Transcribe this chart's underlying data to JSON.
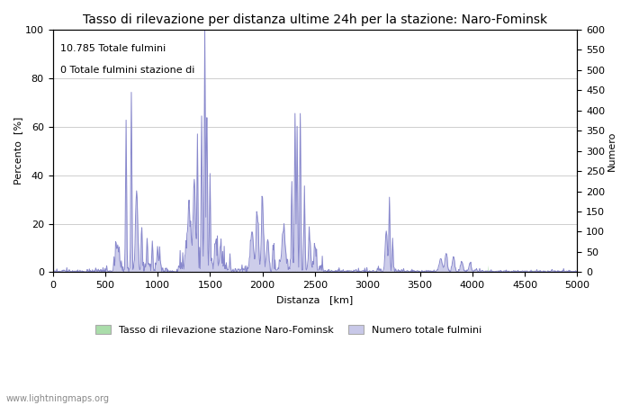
{
  "title": "Tasso di rilevazione per distanza ultime 24h per la stazione: Naro-Fominsk",
  "xlabel": "Distanza   [km]",
  "ylabel_left": "Percento  [%]",
  "ylabel_right": "Numero",
  "annotation_line1": "10.785 Totale fulmini",
  "annotation_line2": "0 Totale fulmini stazione di",
  "legend_label1": "Tasso di rilevazione stazione Naro-Fominsk",
  "legend_label2": "Numero totale fulmini",
  "watermark": "www.lightningmaps.org",
  "xlim": [
    0,
    5000
  ],
  "ylim_left": [
    0,
    100
  ],
  "ylim_right": [
    0,
    600
  ],
  "xticks": [
    0,
    500,
    1000,
    1500,
    2000,
    2500,
    3000,
    3500,
    4000,
    4500,
    5000
  ],
  "yticks_left": [
    0,
    20,
    40,
    60,
    80,
    100
  ],
  "yticks_right": [
    0,
    50,
    100,
    150,
    200,
    250,
    300,
    350,
    400,
    450,
    500,
    550,
    600
  ],
  "line_color": "#8888cc",
  "fill_color_blue": "#c8c8e8",
  "fill_color_green": "#aaddaa",
  "background_color": "#ffffff",
  "grid_color": "#bbbbbb",
  "title_fontsize": 10,
  "axis_fontsize": 8,
  "tick_fontsize": 8
}
